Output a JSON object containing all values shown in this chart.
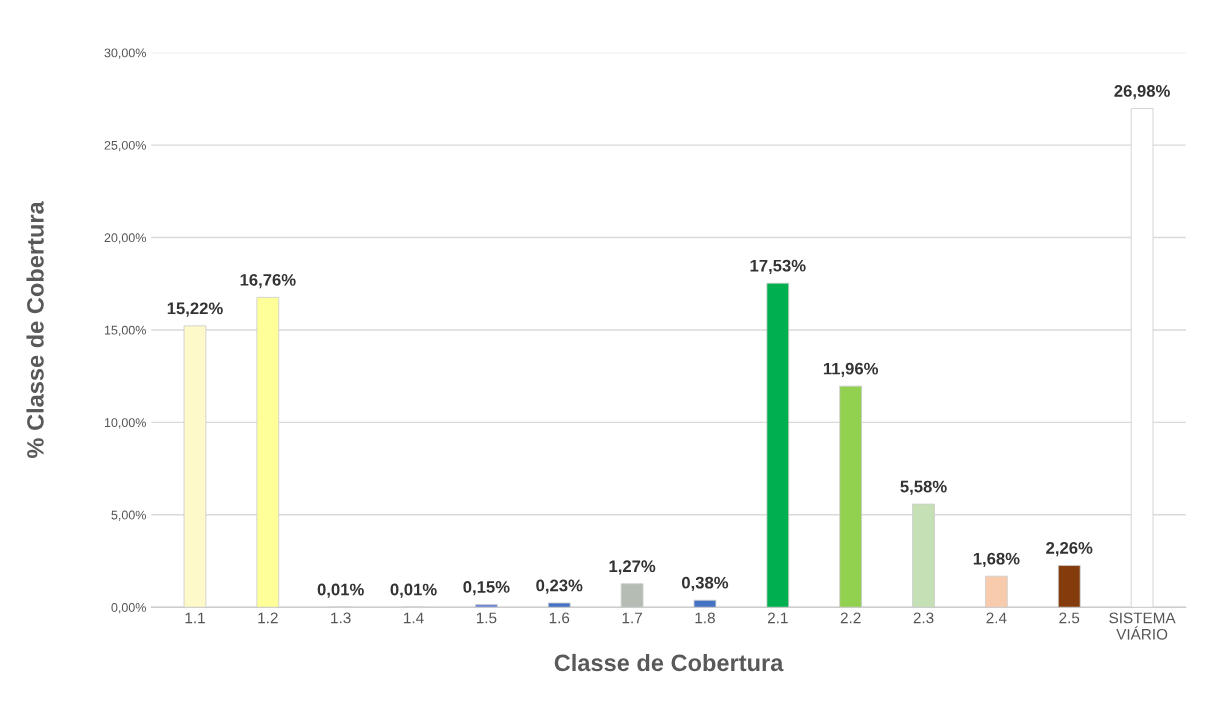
{
  "chart_data": {
    "type": "bar",
    "xlabel": "Classe de Cobertura",
    "ylabel": "% Classe de Cobertura",
    "categories": [
      "1.1",
      "1.2",
      "1.3",
      "1.4",
      "1.5",
      "1.6",
      "1.7",
      "1.8",
      "2.1",
      "2.2",
      "2.3",
      "2.4",
      "2.5",
      "SISTEMA\nVIÁRIO"
    ],
    "values": [
      15.22,
      16.76,
      0.01,
      0.01,
      0.15,
      0.23,
      1.27,
      0.38,
      17.53,
      11.96,
      5.58,
      1.68,
      2.26,
      26.98
    ],
    "colors": [
      "#fdf9c8",
      "#ffff99",
      "#e8e8e8",
      "#e8e8e8",
      "#6f86d6",
      "#4472c4",
      "#b4bcb4",
      "#4472c4",
      "#00b050",
      "#92d050",
      "#c5e0b4",
      "#f8cbad",
      "#843c0c",
      "#ffffff"
    ],
    "value_labels": [
      "15,22%",
      "16,76%",
      "0,01%",
      "0,01%",
      "0,15%",
      "0,23%",
      "1,27%",
      "0,38%",
      "17,53%",
      "11,96%",
      "5,58%",
      "1,68%",
      "2,26%",
      "26,98%"
    ],
    "ylim": [
      0,
      30
    ],
    "yticks": [
      {
        "value": 0,
        "label": "0,00%"
      },
      {
        "value": 5,
        "label": "5,00%"
      },
      {
        "value": 10,
        "label": "10,00%"
      },
      {
        "value": 15,
        "label": "15,00%"
      },
      {
        "value": 20,
        "label": "20,00%"
      },
      {
        "value": 25,
        "label": "25,00%"
      },
      {
        "value": 30,
        "label": "30,00%"
      }
    ],
    "grid": "y"
  }
}
